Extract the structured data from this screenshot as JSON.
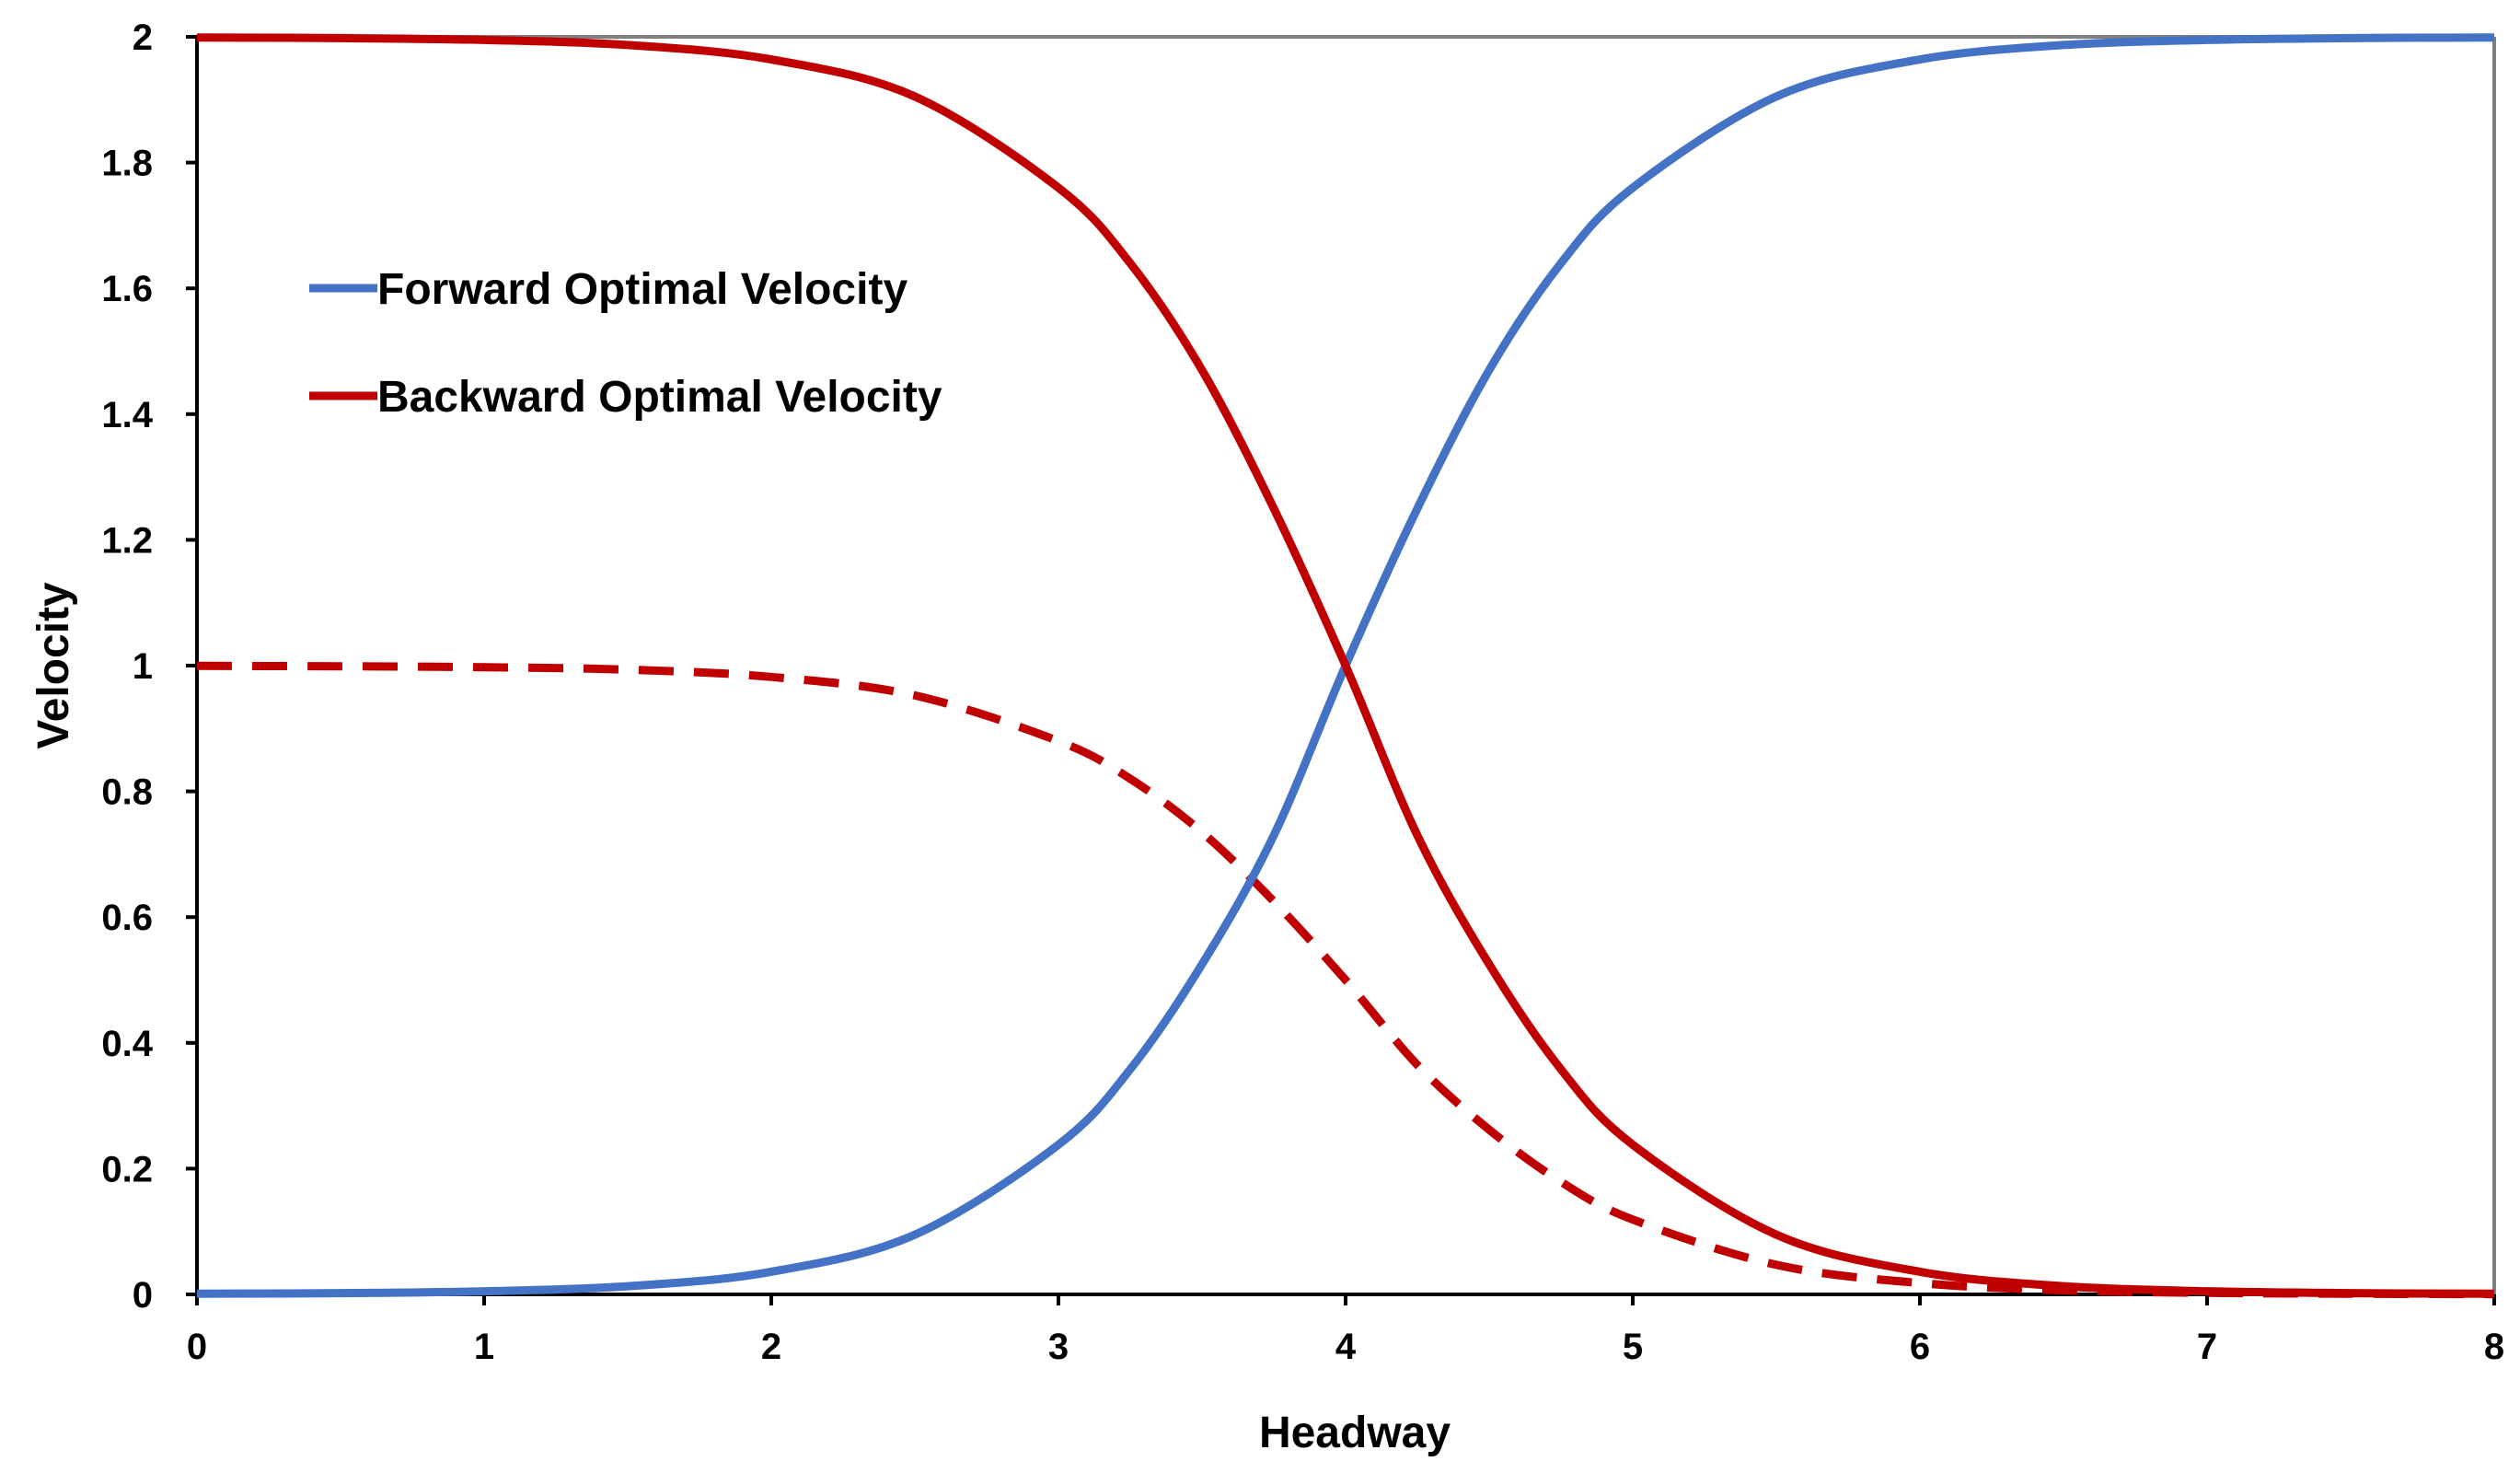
{
  "chart_data": {
    "type": "line",
    "title": "",
    "xlabel": "Headway",
    "ylabel": "Velocity",
    "xlim": [
      0,
      8
    ],
    "ylim": [
      0,
      2
    ],
    "x_ticks": [
      "0",
      "1",
      "2",
      "3",
      "4",
      "5",
      "6",
      "7",
      "8"
    ],
    "y_ticks": [
      "0",
      "0.2",
      "0.4",
      "0.6",
      "0.8",
      "1",
      "1.2",
      "1.4",
      "1.6",
      "1.8",
      "2"
    ],
    "grid": false,
    "legend_position": "upper-left",
    "colors": {
      "forward": "#4472C4",
      "backward": "#C00000",
      "frame": "#7F7F7F",
      "axis": "#000000"
    },
    "series": [
      {
        "name": "Forward Optimal Velocity",
        "color": "#4472C4",
        "style": "solid",
        "x": [
          0,
          0.5,
          1,
          1.5,
          2,
          2.5,
          3,
          3.25,
          3.5,
          3.75,
          4,
          4.25,
          4.5,
          4.75,
          5,
          5.5,
          6,
          6.5,
          7,
          7.5,
          8
        ],
        "y": [
          0.001,
          0.002,
          0.005,
          0.013,
          0.036,
          0.095,
          0.238,
          0.358,
          0.525,
          0.73,
          1.0,
          1.25,
          1.47,
          1.64,
          1.76,
          1.905,
          1.964,
          1.987,
          1.995,
          1.998,
          1.999
        ]
      },
      {
        "name": "Backward Optimal Velocity",
        "color": "#C00000",
        "style": "solid",
        "x": [
          0,
          0.5,
          1,
          1.5,
          2,
          2.5,
          3,
          3.25,
          3.5,
          3.75,
          4,
          4.25,
          4.5,
          4.75,
          5,
          5.5,
          6,
          6.5,
          7,
          7.5,
          8
        ],
        "y": [
          1.999,
          1.998,
          1.995,
          1.987,
          1.964,
          1.905,
          1.76,
          1.64,
          1.47,
          1.25,
          1.0,
          0.73,
          0.525,
          0.358,
          0.238,
          0.095,
          0.036,
          0.013,
          0.005,
          0.002,
          0.001
        ]
      },
      {
        "color": "#C00000",
        "style": "dashed",
        "x": [
          0,
          0.5,
          1,
          1.5,
          2,
          2.5,
          3,
          3.25,
          3.5,
          3.75,
          4,
          4.25,
          4.5,
          4.75,
          5,
          5.5,
          6,
          6.5,
          7,
          7.5,
          8
        ],
        "y": [
          0.9995,
          0.999,
          0.9975,
          0.9935,
          0.982,
          0.9525,
          0.88,
          0.82,
          0.735,
          0.625,
          0.5,
          0.365,
          0.262,
          0.179,
          0.119,
          0.047,
          0.018,
          0.0065,
          0.0025,
          0.001,
          0.0005
        ]
      }
    ]
  }
}
